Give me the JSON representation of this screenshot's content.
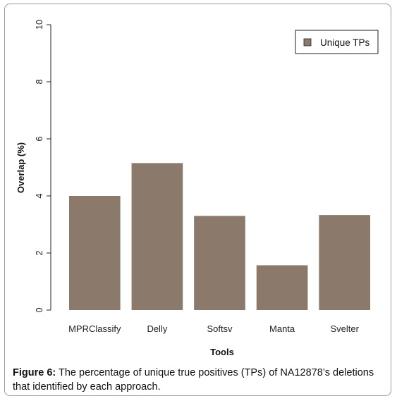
{
  "chart_data": {
    "type": "bar",
    "categories": [
      "MPRClassify",
      "Delly",
      "Softsv",
      "Manta",
      "Svelter"
    ],
    "series": [
      {
        "name": "Unique TPs",
        "values": [
          4.0,
          5.15,
          3.3,
          1.57,
          3.33
        ]
      }
    ],
    "xlabel": "Tools",
    "ylabel": "Overlap (%)",
    "ylim": [
      0,
      10
    ],
    "yticks": [
      "0",
      "2",
      "4",
      "6",
      "8",
      "10"
    ],
    "grid": false,
    "legend_position": "top-right",
    "bar_color": "#8b7a6b"
  },
  "caption": {
    "label": "Figure 6:",
    "text": " The percentage of unique true positives (TPs) of NA12878’s deletions that identified by each approach."
  }
}
